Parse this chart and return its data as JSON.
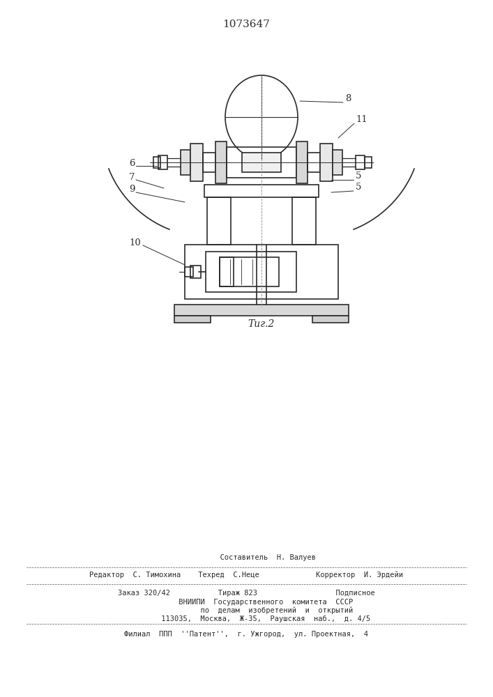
{
  "title": "1073647",
  "bg_color": "#ffffff",
  "line_color": "#2a2a2a",
  "fig_caption": "Τиг.2",
  "footer_lines": [
    "          Составитель  Н. Валуев",
    "Редактор  С. Тимохина    Техред  С.Неце             Корректор  И. Эрдейи",
    "Заказ 320/42           Тираж 823                  Подписное",
    "         ВНИИПИ  Государственного  комитета  СССР",
    "              по  делам  изобретений  и  открытий",
    "         113035,  Москва,  Ж-35,  Раушская  наб.,  д. 4/5",
    "Филиал  ППП  ''Патент'',  г. Ужгород,  ул. Проектная,  4"
  ]
}
